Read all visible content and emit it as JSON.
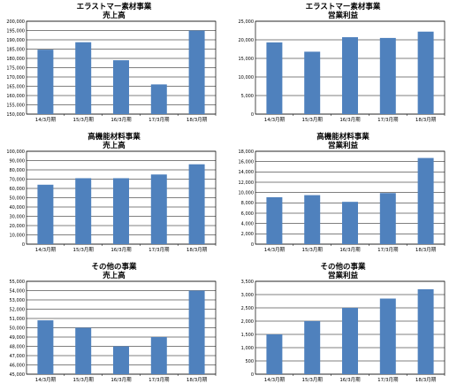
{
  "colors": {
    "bar": "#4f81bd",
    "grid": "#000000",
    "axis": "#000000"
  },
  "chart_data": [
    {
      "type": "bar",
      "title": "エラストマー素材事業",
      "subtitle": "売上高",
      "categories": [
        "14/3月期",
        "15/3月期",
        "16/3月期",
        "17/3月期",
        "18/3月期"
      ],
      "values": [
        184700,
        188700,
        179000,
        166000,
        195000
      ],
      "ylim": [
        150000,
        200000
      ],
      "yticks": [
        "150,000",
        "155,000",
        "160,000",
        "165,000",
        "170,000",
        "175,000",
        "180,000",
        "185,000",
        "190,000",
        "195,000",
        "200,000"
      ],
      "grid": true
    },
    {
      "type": "bar",
      "title": "エラストマー素材事業",
      "subtitle": "営業利益",
      "categories": [
        "14/3月期",
        "15/3月期",
        "16/3月期",
        "17/3月期",
        "18/3月期"
      ],
      "values": [
        19300,
        16800,
        20700,
        20500,
        22200
      ],
      "ylim": [
        0,
        25000
      ],
      "yticks": [
        "0",
        "5,000",
        "10,000",
        "15,000",
        "20,000",
        "25,000"
      ],
      "grid": true
    },
    {
      "type": "bar",
      "title": "高機能材料事業",
      "subtitle": "売上高",
      "categories": [
        "14/3月期",
        "15/3月期",
        "16/3月期",
        "17/3月期",
        "18/3月期"
      ],
      "values": [
        64000,
        71000,
        71000,
        75000,
        86000
      ],
      "ylim": [
        0,
        100000
      ],
      "yticks": [
        "0",
        "10,000",
        "20,000",
        "30,000",
        "40,000",
        "50,000",
        "60,000",
        "70,000",
        "80,000",
        "90,000",
        "100,000"
      ],
      "grid": true
    },
    {
      "type": "bar",
      "title": "高機能材料事業",
      "subtitle": "営業利益",
      "categories": [
        "14/3月期",
        "15/3月期",
        "16/3月期",
        "17/3月期",
        "18/3月期"
      ],
      "values": [
        9100,
        9500,
        8200,
        9900,
        16700
      ],
      "ylim": [
        0,
        18000
      ],
      "yticks": [
        "0",
        "2,000",
        "4,000",
        "6,000",
        "8,000",
        "10,000",
        "12,000",
        "14,000",
        "16,000",
        "18,000"
      ],
      "grid": true
    },
    {
      "type": "bar",
      "title": "その他の事業",
      "subtitle": "売上高",
      "categories": [
        "14/3月期",
        "15/3月期",
        "16/3月期",
        "17/3月期",
        "18/3月期"
      ],
      "values": [
        50800,
        50000,
        48000,
        49000,
        54000
      ],
      "ylim": [
        45000,
        55000
      ],
      "yticks": [
        "45,000",
        "46,000",
        "47,000",
        "48,000",
        "49,000",
        "50,000",
        "51,000",
        "52,000",
        "53,000",
        "54,000",
        "55,000"
      ],
      "grid": true
    },
    {
      "type": "bar",
      "title": "その他の事業",
      "subtitle": "営業利益",
      "categories": [
        "14/3月期",
        "15/3月期",
        "16/3月期",
        "17/3月期",
        "18/3月期"
      ],
      "values": [
        1500,
        2000,
        2500,
        2850,
        3200
      ],
      "ylim": [
        0,
        3500
      ],
      "yticks": [
        "0",
        "500",
        "1,000",
        "1,500",
        "2,000",
        "2,500",
        "3,000",
        "3,500"
      ],
      "grid": true
    }
  ]
}
